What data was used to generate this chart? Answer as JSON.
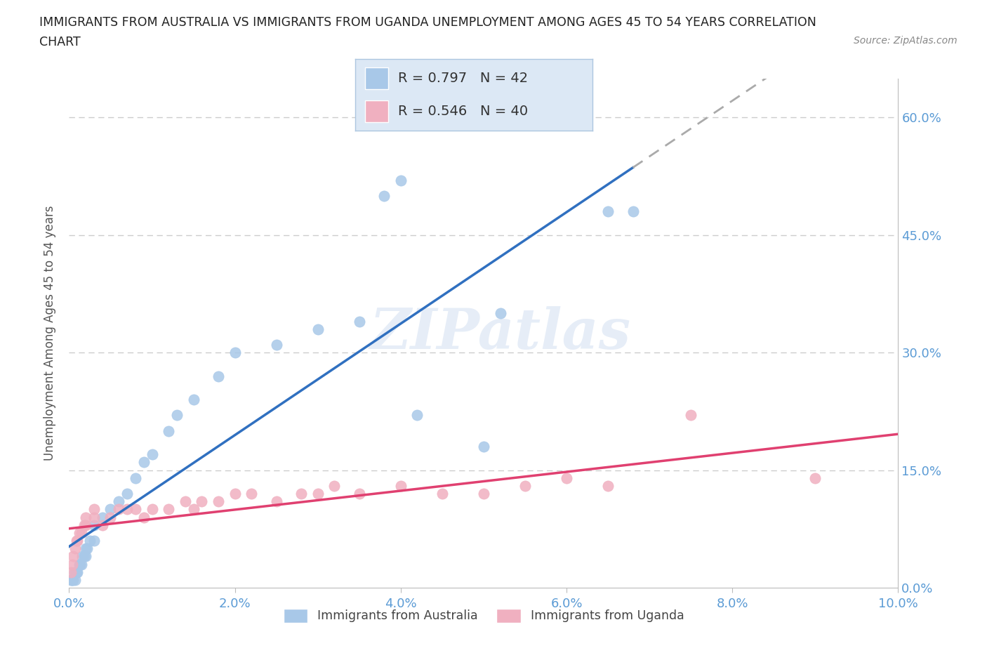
{
  "title_line1": "IMMIGRANTS FROM AUSTRALIA VS IMMIGRANTS FROM UGANDA UNEMPLOYMENT AMONG AGES 45 TO 54 YEARS CORRELATION",
  "title_line2": "CHART",
  "source_text": "Source: ZipAtlas.com",
  "ylabel": "Unemployment Among Ages 45 to 54 years",
  "watermark": "ZIPatlas",
  "australia_R": 0.797,
  "australia_N": 42,
  "uganda_R": 0.546,
  "uganda_N": 40,
  "australia_color": "#a8c8e8",
  "uganda_color": "#f0b0c0",
  "australia_line_color": "#3070c0",
  "uganda_line_color": "#e04070",
  "australia_line_dashed_color": "#aaaaaa",
  "xmin": 0.0,
  "xmax": 0.1,
  "ymin": 0.0,
  "ymax": 0.65,
  "yticks": [
    0.0,
    0.15,
    0.3,
    0.45,
    0.6
  ],
  "xticks": [
    0.0,
    0.02,
    0.04,
    0.06,
    0.08,
    0.1
  ],
  "australia_x": [
    0.0002,
    0.0003,
    0.0004,
    0.0005,
    0.0006,
    0.0007,
    0.0008,
    0.0009,
    0.001,
    0.0012,
    0.0013,
    0.0015,
    0.0016,
    0.0018,
    0.002,
    0.002,
    0.0022,
    0.0025,
    0.003,
    0.003,
    0.004,
    0.005,
    0.006,
    0.007,
    0.008,
    0.009,
    0.01,
    0.012,
    0.013,
    0.015,
    0.018,
    0.02,
    0.025,
    0.03,
    0.035,
    0.038,
    0.04,
    0.042,
    0.05,
    0.052,
    0.065,
    0.068
  ],
  "australia_y": [
    0.01,
    0.01,
    0.01,
    0.01,
    0.02,
    0.01,
    0.02,
    0.02,
    0.02,
    0.03,
    0.03,
    0.03,
    0.04,
    0.04,
    0.04,
    0.05,
    0.05,
    0.06,
    0.06,
    0.08,
    0.09,
    0.1,
    0.11,
    0.12,
    0.14,
    0.16,
    0.17,
    0.2,
    0.22,
    0.24,
    0.27,
    0.3,
    0.31,
    0.33,
    0.34,
    0.5,
    0.52,
    0.22,
    0.18,
    0.35,
    0.48,
    0.48
  ],
  "uganda_x": [
    0.0002,
    0.0004,
    0.0005,
    0.0007,
    0.0009,
    0.001,
    0.0012,
    0.0015,
    0.0018,
    0.002,
    0.002,
    0.003,
    0.003,
    0.004,
    0.005,
    0.006,
    0.007,
    0.008,
    0.009,
    0.01,
    0.012,
    0.014,
    0.015,
    0.016,
    0.018,
    0.02,
    0.022,
    0.025,
    0.028,
    0.03,
    0.032,
    0.035,
    0.04,
    0.045,
    0.05,
    0.055,
    0.06,
    0.065,
    0.075,
    0.09
  ],
  "uganda_y": [
    0.02,
    0.03,
    0.04,
    0.05,
    0.06,
    0.06,
    0.07,
    0.07,
    0.08,
    0.08,
    0.09,
    0.09,
    0.1,
    0.08,
    0.09,
    0.1,
    0.1,
    0.1,
    0.09,
    0.1,
    0.1,
    0.11,
    0.1,
    0.11,
    0.11,
    0.12,
    0.12,
    0.11,
    0.12,
    0.12,
    0.13,
    0.12,
    0.13,
    0.12,
    0.12,
    0.13,
    0.14,
    0.13,
    0.22,
    0.14
  ],
  "background_color": "#ffffff",
  "grid_color": "#cccccc",
  "axis_label_color": "#5b9bd5",
  "title_color": "#222222",
  "legend_box_color": "#dce8f5",
  "legend_border_color": "#adc6e0"
}
